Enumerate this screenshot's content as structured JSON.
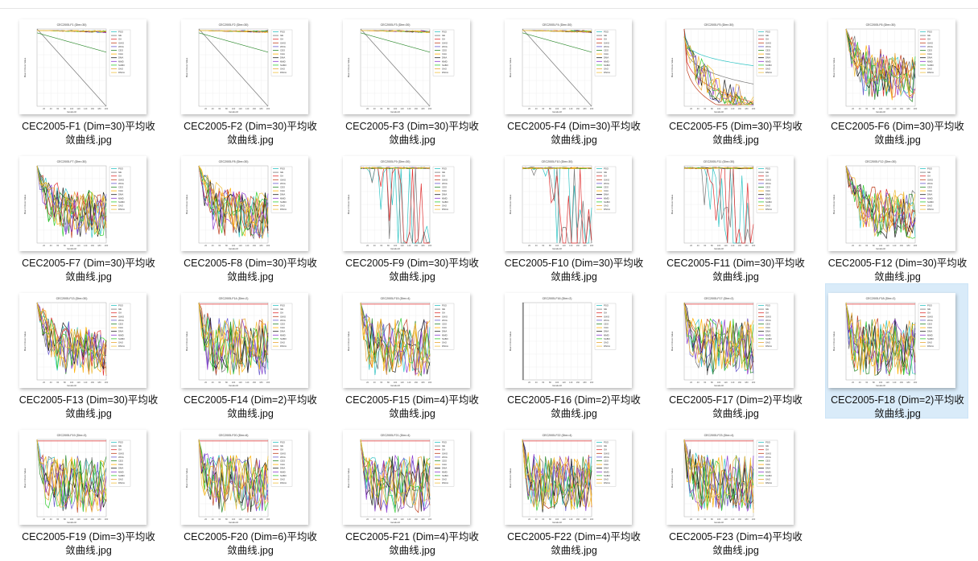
{
  "explorer": {
    "selected_index": 17,
    "legend_labels": [
      "PSO",
      "GE",
      "GA",
      "GWO",
      "WOA",
      "CEO",
      "CHA",
      "DMA",
      "MMD",
      "SABO",
      "SAO",
      "DNCA"
    ],
    "series_colors": [
      "#2fc4c4",
      "#777777",
      "#e03030",
      "#c04020",
      "#6a5acd",
      "#2d8a2d",
      "#ffb000",
      "#222222",
      "#8c3bcf",
      "#33cc33",
      "#e8a838",
      "#f0c040"
    ],
    "axis_xlabel": "Iteration#",
    "axis_ylabel": "Mean Fitness Value",
    "x_ticks": [
      "20",
      "40",
      "60",
      "80",
      "100",
      "120",
      "140",
      "160",
      "180",
      "200"
    ],
    "files": [
      {
        "name": "CEC2005-F1 (Dim=30)平均收敛曲线.jpg",
        "chart_title": "CEC2005-F1 (Dim=30)",
        "shape": "lin"
      },
      {
        "name": "CEC2005-F2 (Dim=30)平均收敛曲线.jpg",
        "chart_title": "CEC2005-F2 (Dim=30)",
        "shape": "lin"
      },
      {
        "name": "CEC2005-F3 (Dim=30)平均收敛曲线.jpg",
        "chart_title": "CEC2005-F3 (Dim=30)",
        "shape": "lin"
      },
      {
        "name": "CEC2005-F4 (Dim=30)平均收敛曲线.jpg",
        "chart_title": "CEC2005-F4 (Dim=30)",
        "shape": "lin"
      },
      {
        "name": "CEC2005-F5 (Dim=30)平均收敛曲线.jpg",
        "chart_title": "CEC2005-F5 (Dim=30)",
        "shape": "drop"
      },
      {
        "name": "CEC2005-F6 (Dim=30)平均收敛曲线.jpg",
        "chart_title": "CEC2005-F6 (Dim=30)",
        "shape": "fan"
      },
      {
        "name": "CEC2005-F7 (Dim=30)平均收敛曲线.jpg",
        "chart_title": "CEC2005-F7 (Dim=30)",
        "shape": "fan"
      },
      {
        "name": "CEC2005-F8 (Dim=30)平均收敛曲线.jpg",
        "chart_title": "CEC2005-F8 (Dim=30)",
        "shape": "fan"
      },
      {
        "name": "CEC2005-F9 (Dim=30)平均收敛曲线.jpg",
        "chart_title": "CEC2005-F9 (Dim=30)",
        "shape": "cliff"
      },
      {
        "name": "CEC2005-F10 (Dim=30)平均收敛曲线.jpg",
        "chart_title": "CEC2005-F10 (Dim=30)",
        "shape": "cliff"
      },
      {
        "name": "CEC2005-F11 (Dim=30)平均收敛曲线.jpg",
        "chart_title": "CEC2005-F11 (Dim=30)",
        "shape": "cliff"
      },
      {
        "name": "CEC2005-F12 (Dim=30)平均收敛曲线.jpg",
        "chart_title": "CEC2005-F12 (Dim=30)",
        "shape": "fan"
      },
      {
        "name": "CEC2005-F13 (Dim=30)平均收敛曲线.jpg",
        "chart_title": "CEC2005-F13 (Dim=30)",
        "shape": "fan"
      },
      {
        "name": "CEC2005-F14 (Dim=2)平均收敛曲线.jpg",
        "chart_title": "CEC2005-F14 (Dim=2)",
        "shape": "flat"
      },
      {
        "name": "CEC2005-F15 (Dim=4)平均收敛曲线.jpg",
        "chart_title": "CEC2005-F15 (Dim=4)",
        "shape": "flat"
      },
      {
        "name": "CEC2005-F16 (Dim=2)平均收敛曲线.jpg",
        "chart_title": "CEC2005-F16 (Dim=2)",
        "shape": "empty"
      },
      {
        "name": "CEC2005-F17 (Dim=2)平均收敛曲线.jpg",
        "chart_title": "CEC2005-F17 (Dim=2)",
        "shape": "flat"
      },
      {
        "name": "CEC2005-F18 (Dim=2)平均收敛曲线.jpg",
        "chart_title": "CEC2005-F18 (Dim=2)",
        "shape": "flat"
      },
      {
        "name": "CEC2005-F19 (Dim=3)平均收敛曲线.jpg",
        "chart_title": "CEC2005-F19 (Dim=3)",
        "shape": "flat"
      },
      {
        "name": "CEC2005-F20 (Dim=6)平均收敛曲线.jpg",
        "chart_title": "CEC2005-F20 (Dim=6)",
        "shape": "flat"
      },
      {
        "name": "CEC2005-F21 (Dim=4)平均收敛曲线.jpg",
        "chart_title": "CEC2005-F21 (Dim=4)",
        "shape": "flat"
      },
      {
        "name": "CEC2005-F22 (Dim=4)平均收敛曲线.jpg",
        "chart_title": "CEC2005-F22 (Dim=4)",
        "shape": "flat"
      },
      {
        "name": "CEC2005-F23 (Dim=4)平均收敛曲线.jpg",
        "chart_title": "CEC2005-F23 (Dim=4)",
        "shape": "flat"
      }
    ]
  }
}
